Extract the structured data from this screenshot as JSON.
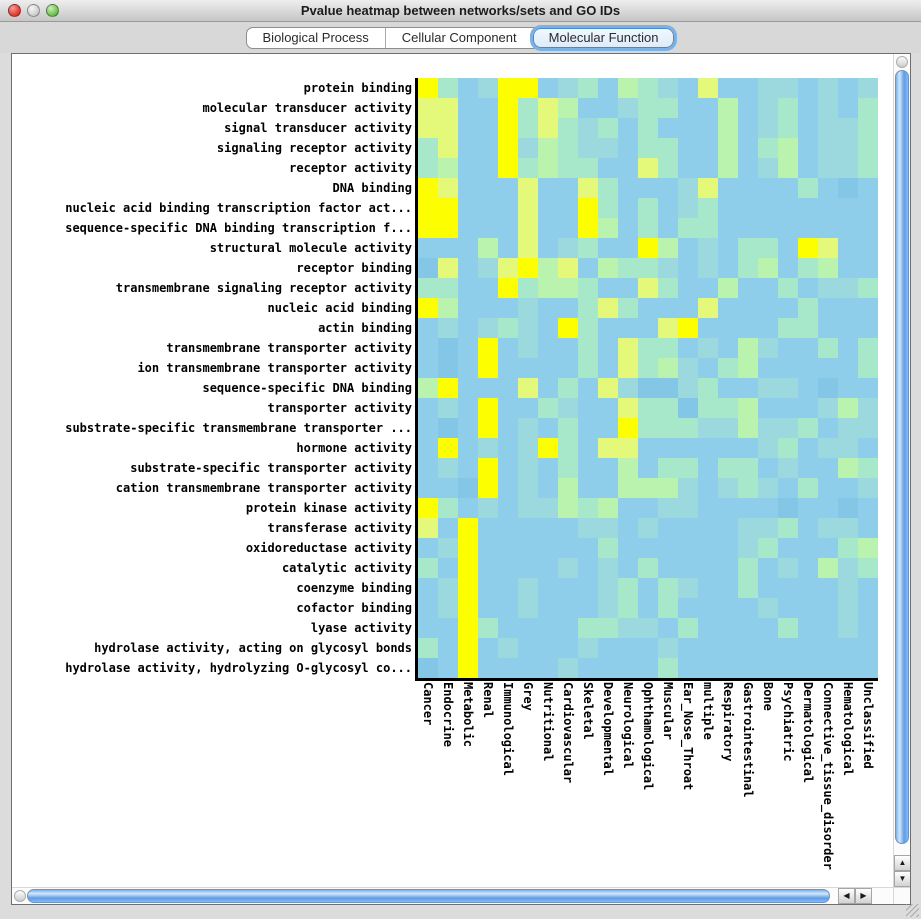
{
  "window": {
    "title": "Pvalue heatmap between networks/sets and GO IDs"
  },
  "tabs": [
    {
      "label": "Biological Process",
      "selected": false
    },
    {
      "label": "Cellular Component",
      "selected": false
    },
    {
      "label": "Molecular Function",
      "selected": true
    }
  ],
  "icons": {
    "up_arrow": "▲",
    "down_arrow": "▼",
    "left_arrow": "◀",
    "right_arrow": "▶"
  },
  "chart_data": {
    "type": "heatmap",
    "title": "Pvalue heatmap between networks/sets and GO IDs",
    "xlabel": "",
    "ylabel": "",
    "grid_on": false,
    "rows": [
      "protein binding",
      "molecular transducer activity",
      "signal transducer activity",
      "signaling receptor activity",
      "receptor activity",
      "DNA binding",
      "nucleic acid binding transcription factor act...",
      "sequence-specific DNA binding transcription f...",
      "structural molecule activity",
      "receptor binding",
      "transmembrane signaling receptor activity",
      "nucleic acid binding",
      "actin binding",
      "transmembrane transporter activity",
      "ion transmembrane transporter activity",
      "sequence-specific DNA binding",
      "transporter activity",
      "substrate-specific transmembrane transporter ...",
      "hormone activity",
      "substrate-specific transporter activity",
      "cation transmembrane transporter activity",
      "protein kinase activity",
      "transferase activity",
      "oxidoreductase activity",
      "catalytic activity",
      "coenzyme binding",
      "cofactor binding",
      "lyase activity",
      "hydrolase activity, acting on glycosyl bonds",
      "hydrolase activity, hydrolyzing O-glycosyl co..."
    ],
    "columns": [
      "Cancer",
      "Endocrine",
      "Metabolic",
      "Renal",
      "Immunological",
      "Grey",
      "Nutritional",
      "Cardiovascular",
      "Skeletal",
      "Developmental",
      "Neurological",
      "Ophthamological",
      "Muscular",
      "Ear_Nose_Throat",
      "multiple",
      "Respiratory",
      "Gastrointestinal",
      "Bone",
      "Psychiatric",
      "Dermatological",
      "Connective_tissue_disorder",
      "Hematological",
      "Unclassified"
    ],
    "palette": {
      "Y": "#fdff00",
      "y": "#e4f879",
      "G": "#b9f3ad",
      "a": "#a7e8cb",
      "t": "#9bd9df",
      "B": "#8fceea",
      "d": "#83c6e6"
    },
    "palette_meaning": "Y lowest p-value (yellow) through green/teal to B/d highest p-value (blue)",
    "grid": [
      "YaBtYYBtaBGatByBBttBtBt",
      "yyBBYayGBBtaaBBGBtaBtBa",
      "yyBBYayataBaBBBGBtaBtta",
      "ayBBYtGattBaaBBGBaGBtta",
      "aGBBYaGaaBByaBBGBtGBtta",
      "YyBBByBByaBBBtyBBBBaBdB",
      "YYBBByBBYaBaBtaBBBBBBBB",
      "YYBBByBBYGBaBaaBBBBBBBB",
      "BBBGByBtaBBYGBtBaaBYyBB",
      "dyBtyYGyBGaatBtBaGBaGBB",
      "aaBBYaGGaBByaBBGBBaBtta",
      "YGBBBtBBayaBBByBBBBaBBB",
      "BtBtatBYaBBByYBBBBaaBBB",
      "BdBYBtBBaByaaBtBGtBBaBa",
      "BdBYBBBBaByaGtBaGBBBBBa",
      "GYBBByBaBytddtaBBttBdBB",
      "BtBYBBatBByaadaaGBBBtGt",
      "BdBYBtBaBBYaaattGttaBtt",
      "BYBtBtYaByyBBBBBBtaBttB",
      "BtBYBtBaBBGBaaBaaBtBBGa",
      "BBdYBtBGBBGGGtBtatBaBBt",
      "YaBtBttGaGBBttBBBBdBBdB",
      "yBYBBBBBttBtBBBBttaBttB",
      "BtYBBBBBBaBBBBBBtaBBBaG",
      "aBYBBBBtBtBaBBBBaBtBGta",
      "BtYBBtBBBtaBatBBaBBBBtB",
      "BtYBBtBBBtaBaBBBBtBBBtB",
      "BBYaBBBBaattBaBBBBaBBtB",
      "aBYBtBBBtBBBtBBBBBBBBBB",
      "dBYBBBBtBBBBaBBBBBBBBBB"
    ]
  }
}
